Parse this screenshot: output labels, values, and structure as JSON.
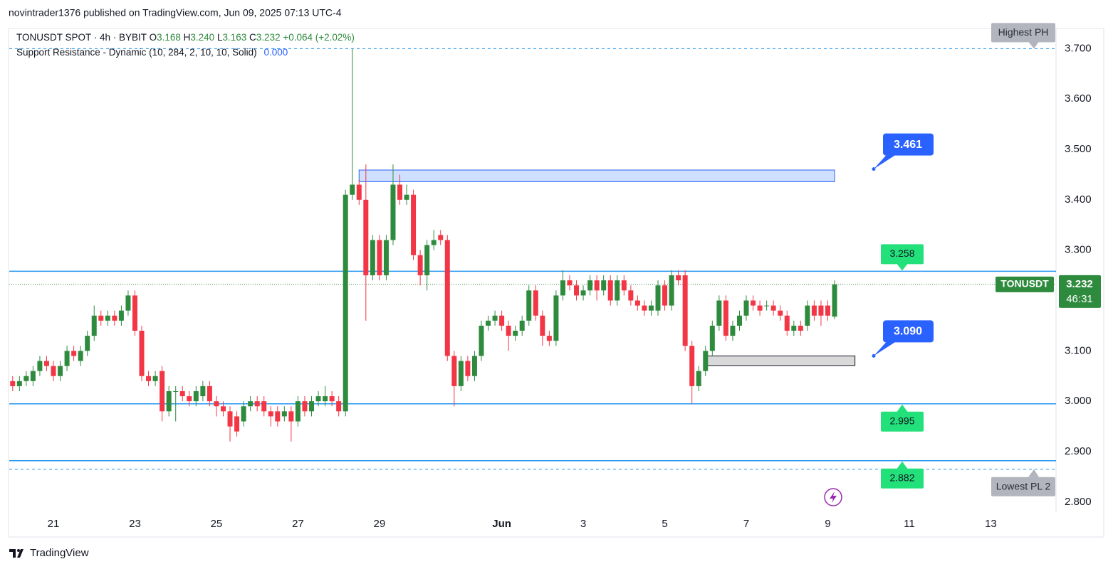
{
  "header": "novintrader1376 published on TradingView.com, Jun 09, 2025 07:13 UTC-4",
  "chart_data": {
    "type": "candlestick",
    "symbol_line": "TONUSDT SPOT · 4h · BYBIT",
    "ohlc_letters": [
      "O",
      "H",
      "L",
      "C"
    ],
    "last_bar_labels": [
      "3.168",
      "3.240",
      "3.163",
      "3.232"
    ],
    "change": "+0.064 (+2.02%)",
    "indicator_name": "Support Resistance - Dynamic (10, 284, 2, 10, 10, Solid)",
    "indicator_value": "0.000",
    "up_color": "#2e8b3e",
    "down_color": "#f23645",
    "open": [
      3.04,
      3.03,
      3.04,
      3.04,
      3.06,
      3.08,
      3.07,
      3.05,
      3.07,
      3.1,
      3.08,
      3.1,
      3.13,
      3.17,
      3.16,
      3.17,
      3.16,
      3.18,
      3.21,
      3.14,
      3.05,
      3.04,
      3.06,
      2.98,
      3.02,
      3.02,
      3.01,
      3.0,
      3.01,
      3.03,
      3.0,
      2.99,
      2.98,
      2.97,
      2.96,
      2.99,
      3.0,
      3.0,
      2.98,
      2.98,
      2.97,
      2.98,
      2.96,
      3.0,
      2.98,
      3.0,
      3.0,
      3.01,
      3.0,
      2.98,
      3.41,
      3.43,
      3.4,
      3.25,
      3.32,
      3.25,
      3.32,
      3.43,
      3.4,
      3.41,
      3.29,
      3.25,
      3.31,
      3.33,
      3.32,
      3.09,
      3.03,
      3.08,
      3.05,
      3.09,
      3.15,
      3.16,
      3.17,
      3.15,
      3.13,
      3.14,
      3.16,
      3.22,
      3.17,
      3.13,
      3.12,
      3.21,
      3.24,
      3.23,
      3.21,
      3.22,
      3.24,
      3.22,
      3.24,
      3.2,
      3.24,
      3.22,
      3.2,
      3.19,
      3.18,
      3.18,
      3.23,
      3.19,
      3.25,
      3.25,
      3.11,
      3.03,
      3.06,
      3.1,
      3.15,
      3.2,
      3.13,
      3.15,
      3.17,
      3.2,
      3.19,
      3.19,
      3.19,
      3.18,
      3.17,
      3.14,
      3.15,
      3.15,
      3.19,
      3.19,
      3.19,
      3.168
    ],
    "high": [
      3.05,
      3.05,
      3.06,
      3.07,
      3.09,
      3.09,
      3.08,
      3.08,
      3.11,
      3.11,
      3.11,
      3.14,
      3.19,
      3.18,
      3.18,
      3.18,
      3.19,
      3.22,
      3.22,
      3.15,
      3.06,
      3.06,
      3.07,
      3.03,
      3.03,
      3.03,
      3.02,
      3.03,
      3.04,
      3.04,
      3.01,
      3.0,
      2.99,
      2.98,
      3.0,
      3.01,
      3.01,
      3.01,
      2.99,
      2.99,
      2.99,
      2.99,
      3.01,
      3.01,
      3.01,
      3.02,
      3.03,
      3.02,
      3.01,
      3.42,
      3.7,
      3.44,
      3.47,
      3.33,
      3.33,
      3.33,
      3.47,
      3.45,
      3.43,
      3.42,
      3.3,
      3.32,
      3.34,
      3.34,
      3.33,
      3.1,
      3.09,
      3.09,
      3.1,
      3.16,
      3.17,
      3.18,
      3.18,
      3.16,
      3.15,
      3.17,
      3.23,
      3.23,
      3.18,
      3.14,
      3.22,
      3.26,
      3.25,
      3.24,
      3.23,
      3.25,
      3.25,
      3.25,
      3.25,
      3.25,
      3.25,
      3.23,
      3.21,
      3.2,
      3.2,
      3.24,
      3.24,
      3.26,
      3.26,
      3.26,
      3.12,
      3.07,
      3.11,
      3.16,
      3.21,
      3.21,
      3.16,
      3.18,
      3.21,
      3.21,
      3.2,
      3.2,
      3.2,
      3.19,
      3.18,
      3.16,
      3.16,
      3.2,
      3.2,
      3.2,
      3.2,
      3.24
    ],
    "low": [
      3.02,
      3.02,
      3.03,
      3.03,
      3.05,
      3.06,
      3.04,
      3.04,
      3.06,
      3.08,
      3.07,
      3.09,
      3.12,
      3.15,
      3.15,
      3.15,
      3.15,
      3.17,
      3.13,
      3.04,
      3.03,
      3.03,
      2.96,
      2.97,
      2.96,
      3.0,
      2.99,
      2.99,
      3.0,
      2.99,
      2.97,
      2.97,
      2.92,
      2.93,
      2.95,
      2.98,
      2.98,
      2.97,
      2.95,
      2.95,
      2.96,
      2.92,
      2.95,
      2.97,
      2.97,
      2.99,
      2.99,
      2.99,
      2.97,
      2.97,
      3.4,
      3.39,
      3.16,
      3.24,
      3.24,
      3.24,
      3.31,
      3.39,
      3.39,
      3.28,
      3.23,
      3.22,
      3.3,
      3.31,
      3.08,
      2.99,
      3.02,
      3.04,
      3.04,
      3.08,
      3.14,
      3.15,
      3.14,
      3.1,
      3.12,
      3.13,
      3.15,
      3.16,
      3.11,
      3.11,
      3.11,
      3.2,
      3.22,
      3.2,
      3.2,
      3.21,
      3.2,
      3.21,
      3.19,
      3.19,
      3.21,
      3.19,
      3.18,
      3.17,
      3.17,
      3.17,
      3.18,
      3.18,
      3.23,
      3.1,
      2.995,
      3.02,
      3.05,
      3.09,
      3.14,
      3.12,
      3.12,
      3.14,
      3.16,
      3.18,
      3.17,
      3.18,
      3.17,
      3.16,
      3.13,
      3.13,
      3.13,
      3.14,
      3.16,
      3.15,
      3.16,
      3.163
    ],
    "close": [
      3.03,
      3.04,
      3.05,
      3.06,
      3.08,
      3.07,
      3.05,
      3.07,
      3.1,
      3.09,
      3.1,
      3.13,
      3.17,
      3.16,
      3.17,
      3.16,
      3.18,
      3.21,
      3.14,
      3.05,
      3.04,
      3.05,
      2.98,
      3.02,
      3.02,
      3.01,
      3.0,
      3.02,
      3.03,
      3.0,
      2.99,
      2.98,
      2.95,
      2.94,
      2.99,
      3.0,
      2.99,
      2.98,
      2.97,
      2.96,
      2.98,
      2.96,
      3.0,
      2.98,
      3.0,
      3.01,
      3.01,
      3.0,
      2.98,
      3.41,
      3.43,
      3.4,
      3.25,
      3.32,
      3.25,
      3.32,
      3.43,
      3.4,
      3.41,
      3.29,
      3.25,
      3.31,
      3.32,
      3.32,
      3.09,
      3.03,
      3.08,
      3.05,
      3.09,
      3.15,
      3.16,
      3.17,
      3.15,
      3.13,
      3.14,
      3.16,
      3.22,
      3.17,
      3.13,
      3.12,
      3.21,
      3.24,
      3.23,
      3.21,
      3.22,
      3.24,
      3.22,
      3.24,
      3.2,
      3.24,
      3.22,
      3.2,
      3.19,
      3.18,
      3.19,
      3.23,
      3.19,
      3.25,
      3.24,
      3.11,
      3.03,
      3.06,
      3.1,
      3.15,
      3.2,
      3.13,
      3.15,
      3.17,
      3.2,
      3.19,
      3.18,
      3.19,
      3.18,
      3.17,
      3.14,
      3.15,
      3.14,
      3.19,
      3.17,
      3.17,
      3.17,
      3.232
    ],
    "xlim": [
      -0.5,
      153.6
    ],
    "xticks": [
      {
        "value": 6,
        "label": "21"
      },
      {
        "value": 18,
        "label": "23"
      },
      {
        "value": 30,
        "label": "25"
      },
      {
        "value": 42,
        "label": "27"
      },
      {
        "value": 54,
        "label": "29"
      },
      {
        "value": 72,
        "label": "Jun"
      },
      {
        "value": 84,
        "label": "3"
      },
      {
        "value": 96,
        "label": "5"
      },
      {
        "value": 108,
        "label": "7"
      },
      {
        "value": 120,
        "label": "9"
      },
      {
        "value": 132,
        "label": "11"
      },
      {
        "value": 144,
        "label": "13"
      }
    ],
    "ylim": [
      2.78,
      3.74
    ],
    "yticks": [
      {
        "value": 3.7,
        "label": "3.700"
      },
      {
        "value": 3.6,
        "label": "3.600"
      },
      {
        "value": 3.5,
        "label": "3.500"
      },
      {
        "value": 3.4,
        "label": "3.400"
      },
      {
        "value": 3.3,
        "label": "3.300"
      },
      {
        "value": 3.2,
        "label": "3.200"
      },
      {
        "value": 3.1,
        "label": "3.100"
      },
      {
        "value": 3.0,
        "label": "3.000"
      },
      {
        "value": 2.9,
        "label": "2.900"
      },
      {
        "value": 2.8,
        "label": "2.800"
      }
    ],
    "level_color": "#2196f3",
    "levels": [
      3.258,
      2.995,
      2.882
    ],
    "pivot_high": {
      "label": "Highest PH",
      "value": 3.7
    },
    "pivot_low": {
      "label": "Lowest PL 2",
      "value": 2.865
    },
    "callouts": [
      3.461,
      {
        "value": 3.09,
        "label": "3.090"
      }
    ],
    "zones": [
      {
        "low": 3.436,
        "high": 3.459,
        "start": 51,
        "end": 121,
        "color": "#cfe0ff"
      },
      {
        "low": 3.071,
        "high": 3.09,
        "start": 102,
        "end": 124,
        "color": "#d9d9d9"
      }
    ],
    "symbol": "TONUSDT",
    "countdown": "46:31"
  },
  "footer": "TradingView"
}
